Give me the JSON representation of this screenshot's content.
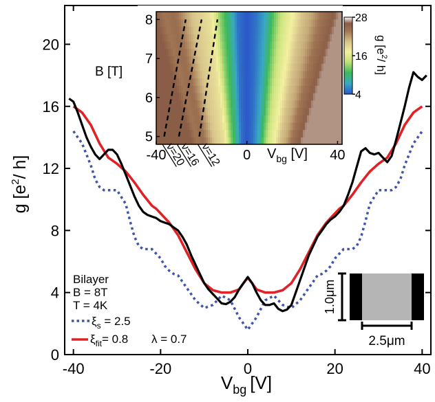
{
  "chart_data": [
    {
      "type": "line",
      "xlabel": "V",
      "xlabel_sub": "bg",
      "xlabel_unit": "[V]",
      "ylabel": "g [e",
      "ylabel_sup": "2",
      "ylabel_unit": "/ h]",
      "xlim": [
        -42,
        42
      ],
      "ylim": [
        0,
        22.5
      ],
      "xticks": [
        -40,
        -20,
        0,
        20,
        40
      ],
      "xtick_labels": [
        "-40",
        "-20",
        "0",
        "20",
        "40"
      ],
      "yticks": [
        0,
        4,
        8,
        12,
        16,
        20
      ],
      "ytick_labels": [
        "0",
        "4",
        "8",
        "12",
        "16",
        "20"
      ],
      "legend": {
        "title_lines": [
          "Bilayer",
          "B = 8T",
          "T = 4K"
        ],
        "entries": [
          {
            "series": "theory_s",
            "sym": "ξ",
            "sub": "s",
            "text": " = 2.5"
          },
          {
            "series": "theory_fit",
            "sym": "ξ",
            "sub": "fit",
            "text": "= 0.8",
            "extra": "λ = 0.7"
          }
        ],
        "placement": "bottom-left"
      },
      "series": [
        {
          "id": "experiment",
          "color": "#000000",
          "style": "solid",
          "x": [
            -41,
            -40,
            -39,
            -38,
            -37,
            -36,
            -35,
            -34,
            -33,
            -32,
            -31,
            -30,
            -29,
            -28,
            -27,
            -26,
            -25,
            -24,
            -23,
            -22,
            -21,
            -20,
            -19,
            -18,
            -17,
            -16,
            -15,
            -14,
            -13,
            -12,
            -11,
            -10,
            -9,
            -8,
            -7,
            -6,
            -5,
            -4,
            -3,
            -2,
            -1,
            0,
            1,
            2,
            3,
            4,
            5,
            6,
            7,
            8,
            9,
            10,
            11,
            12,
            13,
            14,
            15,
            16,
            17,
            18,
            19,
            20,
            21,
            22,
            23,
            24,
            25,
            26,
            27,
            28,
            29,
            30,
            31,
            32,
            33,
            34,
            35,
            36,
            37,
            38,
            39,
            40,
            41
          ],
          "y": [
            16.5,
            16.3,
            15.6,
            14.8,
            14.0,
            13.4,
            12.9,
            12.6,
            12.9,
            13.2,
            13.2,
            12.9,
            12.3,
            11.6,
            10.9,
            10.2,
            9.6,
            9.2,
            9.0,
            8.9,
            8.8,
            8.6,
            8.5,
            8.4,
            8.2,
            8.0,
            7.6,
            7.1,
            6.4,
            5.8,
            5.2,
            4.6,
            4.2,
            3.9,
            3.6,
            3.3,
            3.25,
            3.4,
            3.7,
            4.2,
            4.6,
            5.0,
            4.6,
            4.0,
            3.5,
            3.2,
            3.2,
            3.3,
            2.95,
            2.8,
            2.9,
            3.2,
            4.0,
            4.8,
            5.6,
            6.4,
            7.0,
            7.6,
            8.0,
            8.4,
            8.7,
            8.9,
            9.2,
            9.6,
            10.3,
            11.1,
            12.1,
            13.1,
            13.3,
            13.0,
            12.9,
            13.0,
            12.7,
            12.4,
            12.8,
            13.8,
            14.9,
            16.0,
            17.2,
            18.2,
            17.9,
            17.7,
            18.0
          ]
        },
        {
          "id": "theory_fit",
          "color": "#e02226",
          "style": "solid",
          "x": [
            -40,
            -38,
            -36,
            -34,
            -32,
            -31,
            -30,
            -28,
            -26,
            -24,
            -22,
            -21,
            -20,
            -18,
            -16,
            -14,
            -12,
            -10,
            -8,
            -6,
            -4,
            -2,
            -1,
            0,
            1,
            2,
            4,
            6,
            8,
            10,
            12,
            14,
            16,
            18,
            20,
            21,
            22,
            24,
            26,
            28,
            30,
            31,
            32,
            34,
            36,
            38,
            40
          ],
          "y": [
            16.0,
            15.6,
            14.8,
            13.6,
            12.7,
            12.5,
            12.3,
            11.8,
            11.1,
            10.3,
            9.6,
            9.4,
            9.1,
            8.5,
            7.7,
            6.6,
            5.5,
            4.6,
            4.15,
            4.0,
            4.0,
            4.2,
            4.6,
            4.95,
            4.6,
            4.2,
            4.0,
            4.0,
            4.15,
            4.6,
            5.5,
            6.6,
            7.7,
            8.5,
            9.1,
            9.4,
            9.6,
            10.3,
            11.1,
            11.8,
            12.3,
            12.5,
            12.7,
            13.6,
            14.8,
            15.6,
            16.0
          ]
        },
        {
          "id": "theory_s",
          "color": "#3f56a6",
          "style": "dotted",
          "x": [
            -40,
            -38,
            -36,
            -35,
            -34,
            -33,
            -32,
            -30,
            -28,
            -27,
            -26,
            -25,
            -24,
            -22,
            -20,
            -19,
            -18,
            -17,
            -16,
            -14,
            -12,
            -10,
            -8,
            -6,
            -4,
            -2,
            0,
            2,
            4,
            6,
            8,
            10,
            12,
            14,
            16,
            17,
            18,
            19,
            20,
            22,
            24,
            25,
            26,
            27,
            28,
            30,
            32,
            33,
            34,
            35,
            36,
            38,
            40
          ],
          "y": [
            14.4,
            13.6,
            12.2,
            11.3,
            10.8,
            10.6,
            10.6,
            10.6,
            9.7,
            8.6,
            7.6,
            7.0,
            6.8,
            6.8,
            6.2,
            5.7,
            5.4,
            5.2,
            5.1,
            4.3,
            3.5,
            3.0,
            3.2,
            3.8,
            3.5,
            2.4,
            1.6,
            2.4,
            3.5,
            3.8,
            3.2,
            3.0,
            3.5,
            4.3,
            5.1,
            5.2,
            5.4,
            5.7,
            6.2,
            6.8,
            6.8,
            7.0,
            7.6,
            8.6,
            9.7,
            10.6,
            10.6,
            10.6,
            10.8,
            11.3,
            12.2,
            13.6,
            14.4
          ]
        }
      ],
      "scale_annotation": {
        "height_label": "1.0μm",
        "width_label": "2.5μm",
        "colors": {
          "contact": "#000000",
          "flake": "#b5b5b5"
        }
      }
    },
    {
      "type": "heatmap",
      "ylabel": "B [T]",
      "xlabel": "V",
      "xlabel_sub": "bg",
      "xlabel_unit": " [V]",
      "xlim": [
        -40,
        42
      ],
      "ylim": [
        4.8,
        8.2
      ],
      "xticks": [
        -40,
        0,
        40
      ],
      "xtick_labels": [
        "-40",
        "0",
        "40"
      ],
      "yticks": [
        5,
        6,
        7,
        8
      ],
      "ytick_labels": [
        "5",
        "6",
        "7",
        "8"
      ],
      "colorbar": {
        "label": "g [e",
        "label_sup": "2",
        "label_unit": "/ h]",
        "ticks": [
          4,
          16,
          28
        ],
        "tick_labels": [
          "4",
          "16",
          "28"
        ],
        "range": [
          4,
          28
        ],
        "colormap": [
          "#2b57c9",
          "#39a9c2",
          "#3db95a",
          "#c6e17a",
          "#f3f0a0",
          "#d7c38a",
          "#a07554",
          "#8a5e46",
          "#ffffff"
        ]
      },
      "g_profile_at_B8": {
        "x": [
          -40,
          -36,
          -32,
          -28,
          -24,
          -20,
          -16,
          -12,
          -8,
          -4,
          0,
          4,
          8,
          12,
          16,
          20,
          24,
          28,
          32,
          36,
          40
        ],
        "g": [
          25,
          22,
          23,
          21,
          19,
          18,
          17,
          12,
          9,
          5,
          4,
          5,
          7,
          11,
          14,
          16,
          19,
          20,
          22,
          24,
          26
        ]
      },
      "filling_factor_lines": [
        {
          "label": "ν=20",
          "x_at_B5": -36.5,
          "x_at_B8": -27
        },
        {
          "label": "ν=16",
          "x_at_B5": -30,
          "x_at_B8": -20
        },
        {
          "label": "ν=12",
          "x_at_B5": -21,
          "x_at_B8": -13
        }
      ]
    }
  ]
}
